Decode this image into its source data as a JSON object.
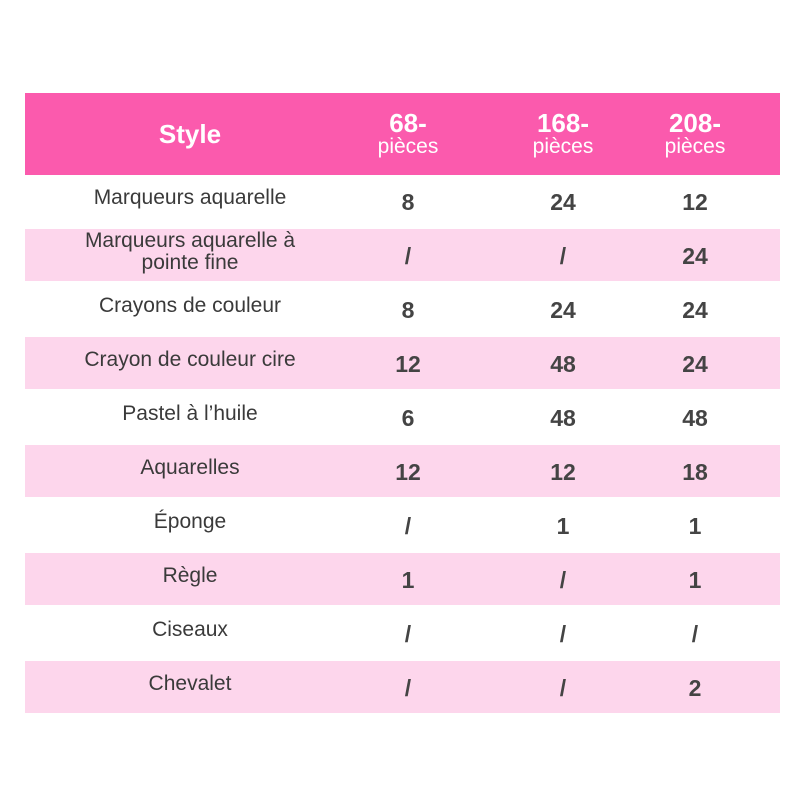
{
  "header": {
    "style": "Style",
    "columns": [
      {
        "num": "68-",
        "unit": "pièces"
      },
      {
        "num": "168-",
        "unit": "pièces"
      },
      {
        "num": "208-",
        "unit": "pièces"
      }
    ]
  },
  "colors": {
    "header": "#fb5aad",
    "alt_row": "#fdd6ec"
  },
  "rows": [
    {
      "name": "Marqueurs aquarelle",
      "values": [
        "8",
        "24",
        "12"
      ]
    },
    {
      "name": "Marqueurs aquarelle à pointe fine",
      "values": [
        "/",
        "/",
        "24"
      ]
    },
    {
      "name": "Crayons de couleur",
      "values": [
        "8",
        "24",
        "24"
      ]
    },
    {
      "name": "Crayon de couleur cire",
      "values": [
        "12",
        "48",
        "24"
      ]
    },
    {
      "name": "Pastel à l’huile",
      "values": [
        "6",
        "48",
        "48"
      ]
    },
    {
      "name": "Aquarelles",
      "values": [
        "12",
        "12",
        "18"
      ]
    },
    {
      "name": "Éponge",
      "values": [
        "/",
        "1",
        "1"
      ]
    },
    {
      "name": "Règle",
      "values": [
        "1",
        "/",
        "1"
      ]
    },
    {
      "name": "Ciseaux",
      "values": [
        "/",
        "/",
        "/"
      ]
    },
    {
      "name": "Chevalet",
      "values": [
        "/",
        "/",
        "2"
      ]
    }
  ]
}
